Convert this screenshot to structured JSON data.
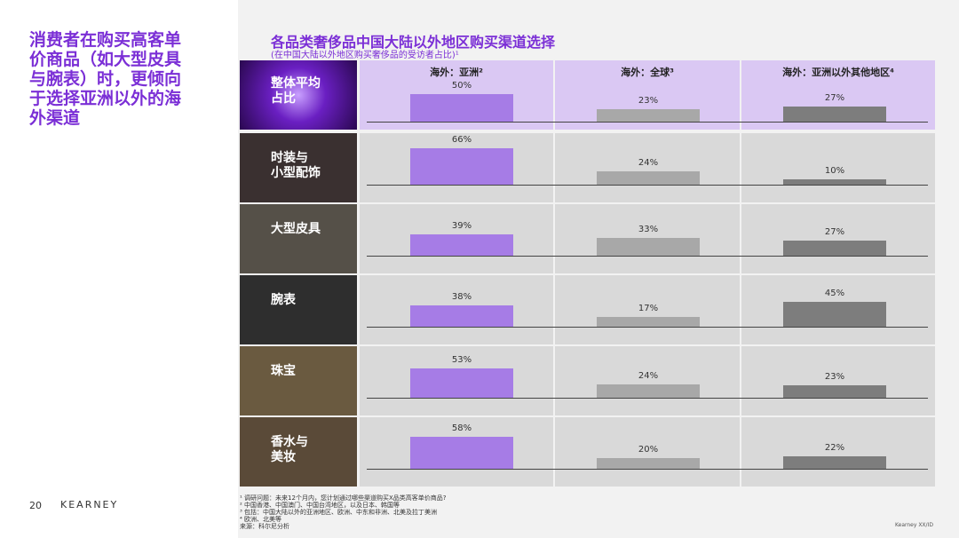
{
  "headline": "消费者在购买高客单\n价商品（如大型皮具\n与腕表）时，更倾向\n于选择亚洲以外的海\n外渠道",
  "page_number": "20",
  "brand": "KEARNEY",
  "chart_data": {
    "type": "bar",
    "title": "各品类奢侈品中国大陆以外地区购买渠道选择",
    "subtitle": "(在中国大陆以外地区购买奢侈品的受访者占比)¹",
    "categories": [
      "整体平均\n占比",
      "时装与\n小型配饰",
      "大型皮具",
      "腕表",
      "珠宝",
      "香水与\n美妆"
    ],
    "series": [
      {
        "name": "海外：亚洲²",
        "color": "#a67ce6",
        "values": [
          50,
          66,
          39,
          38,
          53,
          58
        ],
        "value_labels": [
          "50%",
          "66%",
          "39%",
          "38%",
          "53%",
          "58%"
        ]
      },
      {
        "name": "海外：全球³",
        "color": "#a8a8a8",
        "values": [
          23,
          24,
          33,
          17,
          24,
          20
        ],
        "value_labels": [
          "23%",
          "24%",
          "33%",
          "17%",
          "24%",
          "20%"
        ]
      },
      {
        "name": "海外：亚洲以外其他地区⁴",
        "color": "#7d7d7d",
        "values": [
          27,
          10,
          27,
          45,
          23,
          22
        ],
        "value_labels": [
          "27%",
          "10%",
          "27%",
          "45%",
          "23%",
          "22%"
        ]
      }
    ],
    "ylim": [
      0,
      100
    ]
  },
  "footnotes": [
    "¹ 调研问题：未来12个月内，您计划通过哪些渠道购买X品类高客单价商品?",
    "² 中国香港、中国澳门、中国台湾地区，以及日本、韩国等",
    "³ 包括：中国大陆以外的亚洲地区、欧洲、中东和非洲、北美及拉丁美洲",
    "⁴ 欧洲、北美等",
    "来源：科尔尼分析"
  ],
  "doc_id": "Kearney XX/ID"
}
